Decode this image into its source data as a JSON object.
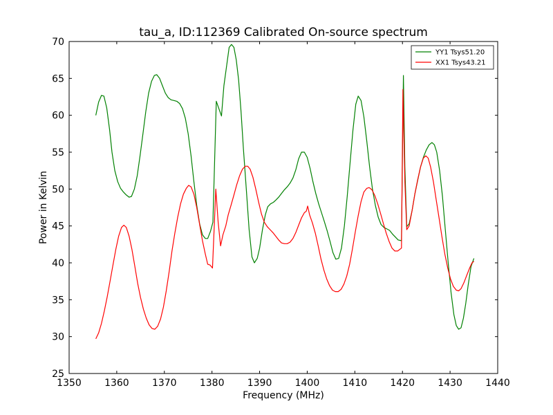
{
  "chart_data": {
    "type": "line",
    "title": "tau_a, ID:112369 Calibrated On-source spectrum",
    "xlabel": "Frequency (MHz)",
    "ylabel": "Power in Kelvin",
    "xlim": [
      1350,
      1440
    ],
    "ylim": [
      25,
      70
    ],
    "xticks": [
      1350,
      1360,
      1370,
      1380,
      1390,
      1400,
      1410,
      1420,
      1430,
      1440
    ],
    "yticks": [
      25,
      30,
      35,
      40,
      45,
      50,
      55,
      60,
      65,
      70
    ],
    "grid": false,
    "legend_position": "top-right",
    "series": [
      {
        "name": "YY1 Tsys51.20",
        "color": "#008000",
        "points": [
          [
            1355.6,
            60.0
          ],
          [
            1356.2,
            61.8
          ],
          [
            1356.8,
            62.7
          ],
          [
            1357.3,
            62.6
          ],
          [
            1357.9,
            61.0
          ],
          [
            1358.5,
            58.0
          ],
          [
            1359.0,
            55.0
          ],
          [
            1359.6,
            52.5
          ],
          [
            1360.2,
            51.0
          ],
          [
            1360.8,
            50.1
          ],
          [
            1361.4,
            49.6
          ],
          [
            1362.0,
            49.2
          ],
          [
            1362.6,
            48.9
          ],
          [
            1363.1,
            49.0
          ],
          [
            1363.7,
            50.0
          ],
          [
            1364.3,
            51.8
          ],
          [
            1364.9,
            54.5
          ],
          [
            1365.5,
            57.5
          ],
          [
            1366.1,
            60.5
          ],
          [
            1366.7,
            63.0
          ],
          [
            1367.3,
            64.6
          ],
          [
            1367.9,
            65.4
          ],
          [
            1368.4,
            65.5
          ],
          [
            1369.0,
            65.0
          ],
          [
            1369.6,
            64.0
          ],
          [
            1370.2,
            63.0
          ],
          [
            1370.8,
            62.4
          ],
          [
            1371.4,
            62.1
          ],
          [
            1372.0,
            62.0
          ],
          [
            1372.6,
            61.9
          ],
          [
            1373.2,
            61.6
          ],
          [
            1373.8,
            60.9
          ],
          [
            1374.4,
            59.6
          ],
          [
            1375.0,
            57.5
          ],
          [
            1375.6,
            54.5
          ],
          [
            1376.2,
            51.0
          ],
          [
            1376.8,
            47.8
          ],
          [
            1377.4,
            45.3
          ],
          [
            1378.0,
            43.8
          ],
          [
            1378.6,
            43.3
          ],
          [
            1379.1,
            43.3
          ],
          [
            1379.7,
            44.3
          ],
          [
            1380.2,
            45.5
          ],
          [
            1380.9,
            61.9
          ],
          [
            1381.5,
            60.8
          ],
          [
            1382.0,
            59.9
          ],
          [
            1382.5,
            64.0
          ],
          [
            1383.1,
            66.8
          ],
          [
            1383.6,
            69.2
          ],
          [
            1384.1,
            69.6
          ],
          [
            1384.6,
            69.2
          ],
          [
            1385.1,
            67.5
          ],
          [
            1385.6,
            64.8
          ],
          [
            1386.1,
            60.5
          ],
          [
            1386.6,
            55.5
          ],
          [
            1387.2,
            50.0
          ],
          [
            1387.8,
            44.5
          ],
          [
            1388.4,
            40.8
          ],
          [
            1388.9,
            40.0
          ],
          [
            1389.5,
            40.6
          ],
          [
            1390.0,
            42.0
          ],
          [
            1390.6,
            44.5
          ],
          [
            1391.2,
            46.5
          ],
          [
            1391.7,
            47.6
          ],
          [
            1392.3,
            48.0
          ],
          [
            1392.9,
            48.2
          ],
          [
            1393.4,
            48.5
          ],
          [
            1394.0,
            48.9
          ],
          [
            1394.6,
            49.4
          ],
          [
            1395.2,
            49.9
          ],
          [
            1395.8,
            50.3
          ],
          [
            1396.4,
            50.8
          ],
          [
            1397.0,
            51.5
          ],
          [
            1397.6,
            52.6
          ],
          [
            1398.2,
            54.1
          ],
          [
            1398.8,
            55.0
          ],
          [
            1399.4,
            55.0
          ],
          [
            1400.0,
            54.3
          ],
          [
            1400.6,
            52.8
          ],
          [
            1401.2,
            51.0
          ],
          [
            1401.8,
            49.4
          ],
          [
            1402.4,
            48.0
          ],
          [
            1403.0,
            46.8
          ],
          [
            1403.6,
            45.6
          ],
          [
            1404.2,
            44.3
          ],
          [
            1404.8,
            42.9
          ],
          [
            1405.4,
            41.4
          ],
          [
            1406.0,
            40.5
          ],
          [
            1406.6,
            40.6
          ],
          [
            1407.2,
            42.0
          ],
          [
            1407.8,
            45.0
          ],
          [
            1408.4,
            49.0
          ],
          [
            1409.0,
            53.5
          ],
          [
            1409.6,
            58.0
          ],
          [
            1410.2,
            61.5
          ],
          [
            1410.7,
            62.6
          ],
          [
            1411.3,
            62.0
          ],
          [
            1411.9,
            59.8
          ],
          [
            1412.5,
            56.5
          ],
          [
            1413.1,
            53.0
          ],
          [
            1413.7,
            50.0
          ],
          [
            1414.3,
            47.8
          ],
          [
            1414.9,
            46.2
          ],
          [
            1415.5,
            45.2
          ],
          [
            1416.1,
            44.8
          ],
          [
            1416.7,
            44.6
          ],
          [
            1417.3,
            44.4
          ],
          [
            1417.9,
            43.9
          ],
          [
            1418.5,
            43.5
          ],
          [
            1419.1,
            43.1
          ],
          [
            1419.8,
            43.0
          ],
          [
            1420.2,
            65.4
          ],
          [
            1420.5,
            53.0
          ],
          [
            1420.9,
            44.9
          ],
          [
            1421.4,
            45.3
          ],
          [
            1422.0,
            47.0
          ],
          [
            1422.6,
            49.3
          ],
          [
            1423.2,
            51.2
          ],
          [
            1423.8,
            53.0
          ],
          [
            1424.4,
            54.3
          ],
          [
            1425.0,
            55.3
          ],
          [
            1425.6,
            56.0
          ],
          [
            1426.2,
            56.3
          ],
          [
            1426.7,
            56.0
          ],
          [
            1427.2,
            55.0
          ],
          [
            1427.8,
            52.5
          ],
          [
            1428.4,
            49.0
          ],
          [
            1429.0,
            44.5
          ],
          [
            1429.6,
            40.0
          ],
          [
            1430.2,
            36.0
          ],
          [
            1430.8,
            33.0
          ],
          [
            1431.3,
            31.5
          ],
          [
            1431.8,
            31.0
          ],
          [
            1432.3,
            31.2
          ],
          [
            1432.8,
            32.5
          ],
          [
            1433.3,
            34.5
          ],
          [
            1433.8,
            37.0
          ],
          [
            1434.4,
            39.5
          ],
          [
            1435.0,
            40.6
          ]
        ]
      },
      {
        "name": "XX1 Tsys43.21",
        "color": "#ff0000",
        "points": [
          [
            1355.6,
            29.7
          ],
          [
            1356.2,
            30.5
          ],
          [
            1356.8,
            31.8
          ],
          [
            1357.4,
            33.5
          ],
          [
            1358.0,
            35.4
          ],
          [
            1358.6,
            37.5
          ],
          [
            1359.2,
            39.7
          ],
          [
            1359.8,
            41.8
          ],
          [
            1360.4,
            43.6
          ],
          [
            1361.0,
            44.8
          ],
          [
            1361.5,
            45.1
          ],
          [
            1362.0,
            44.8
          ],
          [
            1362.6,
            43.6
          ],
          [
            1363.2,
            41.8
          ],
          [
            1363.8,
            39.5
          ],
          [
            1364.4,
            37.2
          ],
          [
            1365.0,
            35.3
          ],
          [
            1365.6,
            33.7
          ],
          [
            1366.2,
            32.5
          ],
          [
            1366.8,
            31.6
          ],
          [
            1367.4,
            31.1
          ],
          [
            1368.0,
            31.0
          ],
          [
            1368.6,
            31.4
          ],
          [
            1369.2,
            32.4
          ],
          [
            1369.8,
            34.0
          ],
          [
            1370.4,
            36.2
          ],
          [
            1371.0,
            38.8
          ],
          [
            1371.6,
            41.6
          ],
          [
            1372.2,
            44.0
          ],
          [
            1372.8,
            46.2
          ],
          [
            1373.4,
            48.0
          ],
          [
            1374.0,
            49.3
          ],
          [
            1374.6,
            50.1
          ],
          [
            1375.1,
            50.5
          ],
          [
            1375.6,
            50.3
          ],
          [
            1376.2,
            49.3
          ],
          [
            1376.8,
            47.5
          ],
          [
            1377.4,
            45.2
          ],
          [
            1378.0,
            43.0
          ],
          [
            1378.6,
            41.2
          ],
          [
            1379.1,
            39.8
          ],
          [
            1379.6,
            39.7
          ],
          [
            1380.1,
            39.3
          ],
          [
            1380.8,
            50.0
          ],
          [
            1381.3,
            45.5
          ],
          [
            1381.8,
            42.3
          ],
          [
            1382.3,
            43.8
          ],
          [
            1382.9,
            45.0
          ],
          [
            1383.4,
            46.5
          ],
          [
            1384.0,
            47.8
          ],
          [
            1384.6,
            49.2
          ],
          [
            1385.2,
            50.6
          ],
          [
            1385.8,
            51.8
          ],
          [
            1386.4,
            52.7
          ],
          [
            1387.0,
            53.1
          ],
          [
            1387.5,
            53.1
          ],
          [
            1388.0,
            52.7
          ],
          [
            1388.6,
            51.6
          ],
          [
            1389.2,
            50.0
          ],
          [
            1389.8,
            48.2
          ],
          [
            1390.4,
            46.6
          ],
          [
            1391.0,
            45.5
          ],
          [
            1391.6,
            44.9
          ],
          [
            1392.2,
            44.5
          ],
          [
            1392.8,
            44.1
          ],
          [
            1393.4,
            43.6
          ],
          [
            1394.0,
            43.1
          ],
          [
            1394.6,
            42.7
          ],
          [
            1395.2,
            42.6
          ],
          [
            1395.8,
            42.6
          ],
          [
            1396.4,
            42.8
          ],
          [
            1397.0,
            43.3
          ],
          [
            1397.6,
            44.1
          ],
          [
            1398.2,
            45.1
          ],
          [
            1398.8,
            46.1
          ],
          [
            1399.4,
            46.8
          ],
          [
            1399.8,
            47.0
          ],
          [
            1400.1,
            47.7
          ],
          [
            1400.5,
            46.5
          ],
          [
            1401.1,
            45.4
          ],
          [
            1401.7,
            44.0
          ],
          [
            1402.3,
            42.3
          ],
          [
            1402.9,
            40.5
          ],
          [
            1403.5,
            39.0
          ],
          [
            1404.1,
            37.8
          ],
          [
            1404.7,
            36.9
          ],
          [
            1405.3,
            36.3
          ],
          [
            1405.9,
            36.1
          ],
          [
            1406.5,
            36.1
          ],
          [
            1407.1,
            36.4
          ],
          [
            1407.7,
            37.1
          ],
          [
            1408.3,
            38.2
          ],
          [
            1408.9,
            39.8
          ],
          [
            1409.5,
            41.9
          ],
          [
            1410.1,
            44.2
          ],
          [
            1410.7,
            46.4
          ],
          [
            1411.3,
            48.3
          ],
          [
            1411.9,
            49.6
          ],
          [
            1412.5,
            50.1
          ],
          [
            1413.0,
            50.2
          ],
          [
            1413.6,
            49.9
          ],
          [
            1414.2,
            49.1
          ],
          [
            1414.8,
            48.0
          ],
          [
            1415.4,
            46.7
          ],
          [
            1416.0,
            45.3
          ],
          [
            1416.6,
            44.0
          ],
          [
            1417.2,
            42.9
          ],
          [
            1417.8,
            42.0
          ],
          [
            1418.4,
            41.6
          ],
          [
            1419.0,
            41.6
          ],
          [
            1419.8,
            42.0
          ],
          [
            1420.1,
            63.5
          ],
          [
            1420.5,
            51.0
          ],
          [
            1420.9,
            44.5
          ],
          [
            1421.4,
            45.0
          ],
          [
            1422.0,
            47.0
          ],
          [
            1422.6,
            49.3
          ],
          [
            1423.2,
            51.3
          ],
          [
            1423.8,
            53.0
          ],
          [
            1424.4,
            54.2
          ],
          [
            1424.9,
            54.5
          ],
          [
            1425.4,
            54.2
          ],
          [
            1425.9,
            53.0
          ],
          [
            1426.5,
            51.0
          ],
          [
            1427.1,
            48.5
          ],
          [
            1427.7,
            46.0
          ],
          [
            1428.3,
            43.5
          ],
          [
            1428.9,
            41.2
          ],
          [
            1429.5,
            39.3
          ],
          [
            1430.1,
            37.8
          ],
          [
            1430.7,
            36.8
          ],
          [
            1431.3,
            36.3
          ],
          [
            1431.8,
            36.2
          ],
          [
            1432.3,
            36.5
          ],
          [
            1432.9,
            37.3
          ],
          [
            1433.5,
            38.3
          ],
          [
            1434.1,
            39.3
          ],
          [
            1434.6,
            40.0
          ],
          [
            1435.0,
            40.2
          ]
        ]
      }
    ]
  }
}
